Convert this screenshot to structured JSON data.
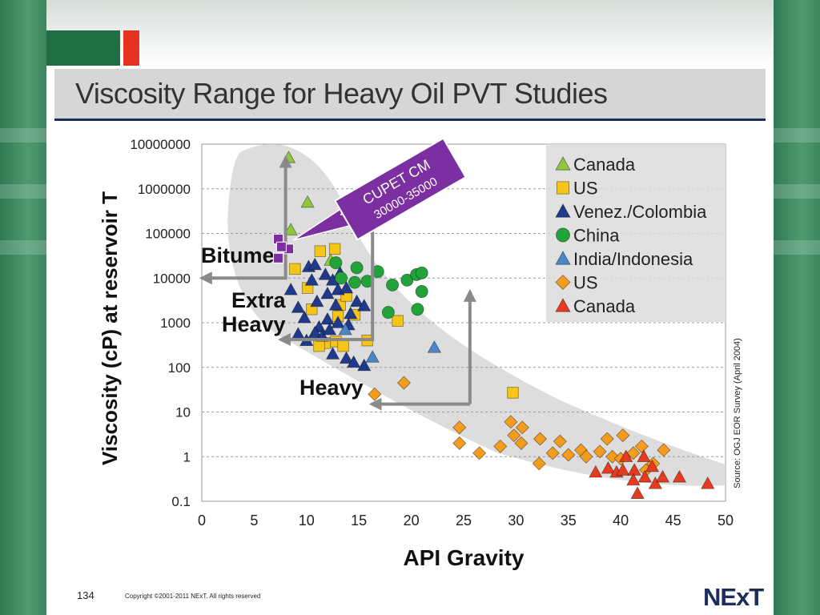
{
  "slide": {
    "title": "Viscosity Range for Heavy Oil PVT Studies",
    "page_number": "134",
    "copyright": "Copyright ©2001-2011 NExT.  All rights reserved",
    "logo_text": "NExT"
  },
  "colors": {
    "side_green": "#3c865e",
    "accent_green": "#1f6e44",
    "accent_red": "#e5331f",
    "title_rule": "#1b2f5a"
  },
  "chart_data": {
    "type": "scatter",
    "xlabel": "API Gravity",
    "ylabel": "Viscosity (cP) at reservoir T",
    "xlim": [
      0,
      50
    ],
    "ylim": [
      0.1,
      10000000
    ],
    "y_scale": "log",
    "x_ticks": [
      "0",
      "5",
      "10",
      "15",
      "20",
      "25",
      "30",
      "35",
      "40",
      "45",
      "50"
    ],
    "y_ticks": [
      "10000000",
      "1000000",
      "100000",
      "10000",
      "1000",
      "100",
      "10",
      "1",
      "0.1"
    ],
    "grid": "horizontal dashed",
    "legend_position": "top-right",
    "source_note": "Source: OGJ EOR Survey (April 2004)",
    "annotations": {
      "bitume": "Bitume",
      "extra_heavy_line1": "Extra",
      "extra_heavy_line2": "Heavy",
      "heavy": "Heavy",
      "cupet_line1": "CUPET CM",
      "cupet_line2": "30000-35000"
    },
    "series": [
      {
        "name": "Canada",
        "marker": "triangle",
        "color": "#8dc63f",
        "points": [
          [
            8.3,
            5000000
          ],
          [
            10.1,
            500000
          ],
          [
            8.5,
            120000
          ],
          [
            12.3,
            25000
          ]
        ]
      },
      {
        "name": "US",
        "marker": "square",
        "color": "#f5c518",
        "points": [
          [
            11.3,
            40000
          ],
          [
            12.7,
            45000
          ],
          [
            8.9,
            16000
          ],
          [
            10.1,
            6000
          ],
          [
            13.2,
            2500
          ],
          [
            10.5,
            2000
          ],
          [
            13.8,
            4000
          ],
          [
            14.6,
            1500
          ],
          [
            13.0,
            1400
          ],
          [
            11.8,
            350
          ],
          [
            11.2,
            300
          ],
          [
            12.8,
            380
          ],
          [
            13.5,
            300
          ],
          [
            15.8,
            400
          ],
          [
            18.7,
            1100
          ],
          [
            29.7,
            27
          ]
        ]
      },
      {
        "name": "Venez./Colombia",
        "marker": "triangle",
        "color": "#1f3a8a",
        "points": [
          [
            8.5,
            5500
          ],
          [
            10.2,
            18000
          ],
          [
            10.8,
            20000
          ],
          [
            11.8,
            12000
          ],
          [
            10.5,
            9000
          ],
          [
            9.2,
            2200
          ],
          [
            11.0,
            3000
          ],
          [
            12.0,
            4500
          ],
          [
            12.5,
            9000
          ],
          [
            13.0,
            5500
          ],
          [
            12.8,
            2500
          ],
          [
            13.8,
            6000
          ],
          [
            14.8,
            3000
          ],
          [
            15.5,
            2400
          ],
          [
            14.2,
            1600
          ],
          [
            12.0,
            1200
          ],
          [
            11.2,
            800
          ],
          [
            10.8,
            600
          ],
          [
            9.2,
            560
          ],
          [
            10.0,
            400
          ],
          [
            11.5,
            500
          ],
          [
            13.0,
            1000
          ],
          [
            14.0,
            900
          ],
          [
            12.5,
            200
          ],
          [
            13.8,
            160
          ],
          [
            14.5,
            130
          ],
          [
            15.5,
            110
          ],
          [
            12.2,
            700
          ],
          [
            9.8,
            1300
          ],
          [
            13.2,
            13000
          ]
        ]
      },
      {
        "name": "China",
        "marker": "circle",
        "color": "#22a33a",
        "points": [
          [
            12.8,
            22000
          ],
          [
            13.3,
            10000
          ],
          [
            14.6,
            8000
          ],
          [
            15.8,
            8500
          ],
          [
            16.8,
            14000
          ],
          [
            18.2,
            7000
          ],
          [
            19.6,
            9000
          ],
          [
            20.5,
            12000
          ],
          [
            21.0,
            13000
          ],
          [
            21.0,
            5000
          ],
          [
            17.8,
            1700
          ],
          [
            20.6,
            2000
          ],
          [
            14.8,
            17000
          ]
        ]
      },
      {
        "name": "India/Indonesia",
        "marker": "triangle",
        "color": "#4a86c8",
        "points": [
          [
            13.7,
            700
          ],
          [
            16.3,
            170
          ],
          [
            22.2,
            280
          ]
        ]
      },
      {
        "name": "US",
        "marker": "diamond",
        "color": "#f39c1e",
        "points": [
          [
            16.5,
            25
          ],
          [
            19.3,
            45
          ],
          [
            24.6,
            4.5
          ],
          [
            24.6,
            2
          ],
          [
            26.5,
            1.2
          ],
          [
            28.5,
            1.7
          ],
          [
            29.5,
            6
          ],
          [
            29.8,
            3
          ],
          [
            30.6,
            4.5
          ],
          [
            30.5,
            2
          ],
          [
            32.3,
            2.5
          ],
          [
            32.2,
            0.7
          ],
          [
            33.5,
            1.2
          ],
          [
            34.2,
            2.2
          ],
          [
            35.0,
            1.1
          ],
          [
            36.2,
            1.4
          ],
          [
            36.7,
            1
          ],
          [
            38.0,
            1.3
          ],
          [
            38.7,
            2.5
          ],
          [
            39.2,
            1
          ],
          [
            40.2,
            3
          ],
          [
            40.0,
            0.9
          ],
          [
            41.2,
            1.2
          ],
          [
            42.0,
            1.7
          ],
          [
            42.4,
            0.5
          ],
          [
            43.1,
            0.7
          ],
          [
            44.1,
            1.4
          ]
        ]
      },
      {
        "name": "Canada",
        "marker": "triangle",
        "color": "#e63b1f",
        "points": [
          [
            37.6,
            0.45
          ],
          [
            38.8,
            0.55
          ],
          [
            39.6,
            0.45
          ],
          [
            40.2,
            0.5
          ],
          [
            40.5,
            1.0
          ],
          [
            41.3,
            0.5
          ],
          [
            41.2,
            0.3
          ],
          [
            42.3,
            0.35
          ],
          [
            43.0,
            0.6
          ],
          [
            43.3,
            0.25
          ],
          [
            44.0,
            0.35
          ],
          [
            45.6,
            0.35
          ],
          [
            48.3,
            0.25
          ],
          [
            41.6,
            0.15
          ],
          [
            42.2,
            1.0
          ]
        ]
      }
    ]
  }
}
